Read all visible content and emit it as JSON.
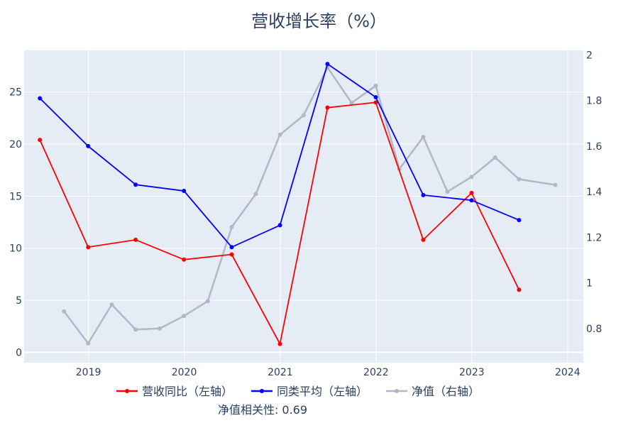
{
  "chart_data": {
    "type": "line",
    "title": "营收增长率（%）",
    "annotation": "净值相关性: 0.69",
    "x_ticks": [
      "2019",
      "2020",
      "2021",
      "2022",
      "2023",
      "2024"
    ],
    "xlim": [
      "2018-05-01",
      "2024-03-01"
    ],
    "y_left": {
      "range": [
        -1,
        29
      ],
      "ticks": [
        0,
        5,
        10,
        15,
        20,
        25
      ]
    },
    "y_right": {
      "range": [
        0.65,
        2.02
      ],
      "ticks": [
        0.8,
        1,
        1.2,
        1.4,
        1.6,
        1.8,
        2
      ]
    },
    "grid": true,
    "legend_position": "bottom-center",
    "plot_bgcolor": "#e5ecf6",
    "series": [
      {
        "name": "营收同比（左轴）",
        "axis": "left",
        "color": "#ff0000",
        "x": [
          "2018-06-30",
          "2018-12-31",
          "2019-06-30",
          "2019-12-31",
          "2020-06-30",
          "2020-12-31",
          "2021-06-30",
          "2021-12-31",
          "2022-06-30",
          "2022-12-31",
          "2023-06-30"
        ],
        "y": [
          20.4,
          10.1,
          10.8,
          8.9,
          9.4,
          0.8,
          23.5,
          24.0,
          10.8,
          15.3,
          6.0
        ]
      },
      {
        "name": "同类平均（左轴）",
        "axis": "left",
        "color": "#0000ff",
        "x": [
          "2018-06-30",
          "2018-12-31",
          "2019-06-30",
          "2019-12-31",
          "2020-06-30",
          "2020-12-31",
          "2021-06-30",
          "2021-12-31",
          "2022-06-30",
          "2022-12-31",
          "2023-06-30"
        ],
        "y": [
          24.4,
          19.8,
          16.1,
          15.5,
          10.1,
          12.2,
          27.7,
          24.5,
          15.1,
          14.6,
          12.7
        ]
      },
      {
        "name": "净值（右轴）",
        "axis": "right",
        "color": "#b0b8c8",
        "x": [
          "2018-09-30",
          "2018-12-31",
          "2019-03-31",
          "2019-06-30",
          "2019-09-30",
          "2019-12-31",
          "2020-03-31",
          "2020-06-30",
          "2020-09-30",
          "2020-12-31",
          "2021-03-31",
          "2021-06-30",
          "2021-09-30",
          "2021-12-31",
          "2022-03-31",
          "2022-06-30",
          "2022-09-30",
          "2022-12-31",
          "2023-03-31",
          "2023-06-30",
          "2023-11-15"
        ],
        "y": [
          0.875,
          0.735,
          0.905,
          0.795,
          0.8,
          0.855,
          0.92,
          1.245,
          1.39,
          1.65,
          1.735,
          1.945,
          1.79,
          1.865,
          1.5,
          1.64,
          1.4,
          1.465,
          1.55,
          1.455,
          1.43
        ]
      }
    ]
  }
}
